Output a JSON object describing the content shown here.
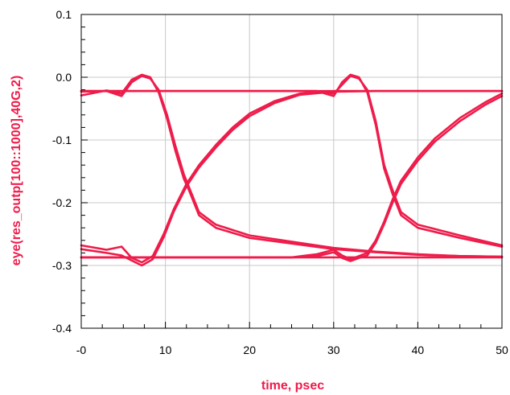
{
  "chart_data": {
    "type": "line",
    "title": "",
    "xlabel": "time, psec",
    "ylabel": "eye(res_outp[100::1000],40G,2)",
    "xlim": [
      0,
      50
    ],
    "ylim": [
      -0.4,
      0.1
    ],
    "x_ticks": [
      0,
      10,
      20,
      30,
      40,
      50
    ],
    "x_tick_labels": [
      "-0",
      "10",
      "20",
      "30",
      "40",
      "50"
    ],
    "y_ticks": [
      0.1,
      0.0,
      -0.1,
      -0.2,
      -0.3,
      -0.4
    ],
    "y_tick_labels": [
      "0.1",
      "0.0",
      "-0.1",
      "-0.2",
      "-0.3",
      "-0.4"
    ],
    "grid": true,
    "colors": {
      "trace": "#ee1c4a",
      "label": "#ee1c4a",
      "grid": "#c8c8c8",
      "frame": "#000000"
    },
    "series": [
      {
        "x": [
          0,
          50
        ],
        "y": [
          -0.022,
          -0.022
        ]
      },
      {
        "x": [
          0,
          50
        ],
        "y": [
          -0.287,
          -0.287
        ]
      },
      {
        "x": [
          0,
          3,
          4.8,
          6,
          7.2,
          8.2,
          9.2,
          10.2,
          11.2,
          12.2,
          12.8,
          14,
          16,
          20,
          25,
          30,
          35,
          40,
          45,
          50
        ],
        "y": [
          -0.023,
          -0.022,
          -0.03,
          -0.008,
          0.002,
          -0.002,
          -0.02,
          -0.06,
          -0.11,
          -0.155,
          -0.175,
          -0.215,
          -0.235,
          -0.252,
          -0.262,
          -0.272,
          -0.278,
          -0.282,
          -0.285,
          -0.286
        ]
      },
      {
        "x": [
          0,
          3,
          4.8,
          6,
          7.2,
          8.2,
          9.2,
          10.2,
          11.2,
          12.2,
          12.8,
          14,
          16,
          20,
          25,
          30,
          35,
          40,
          45,
          50
        ],
        "y": [
          -0.029,
          -0.021,
          -0.026,
          -0.004,
          0.004,
          0.0,
          -0.024,
          -0.066,
          -0.118,
          -0.162,
          -0.18,
          -0.22,
          -0.24,
          -0.256,
          -0.265,
          -0.274,
          -0.279,
          -0.283,
          -0.285,
          -0.286
        ]
      },
      {
        "x": [
          0,
          3,
          4.8,
          6,
          7.2,
          8.5,
          9.8,
          11,
          12.5,
          14,
          16,
          18,
          20,
          23,
          26,
          30,
          35,
          40,
          45,
          50
        ],
        "y": [
          -0.268,
          -0.275,
          -0.27,
          -0.288,
          -0.295,
          -0.285,
          -0.25,
          -0.21,
          -0.17,
          -0.14,
          -0.108,
          -0.08,
          -0.058,
          -0.038,
          -0.026,
          -0.022,
          -0.022,
          -0.022,
          -0.022,
          -0.022
        ]
      },
      {
        "x": [
          0,
          3,
          4.8,
          6,
          7.2,
          8.5,
          9.8,
          11,
          12.5,
          14,
          16,
          18,
          20,
          23,
          26,
          30,
          35,
          40,
          45,
          50
        ],
        "y": [
          -0.274,
          -0.28,
          -0.284,
          -0.292,
          -0.3,
          -0.29,
          -0.255,
          -0.214,
          -0.174,
          -0.144,
          -0.112,
          -0.084,
          -0.062,
          -0.041,
          -0.028,
          -0.023,
          -0.022,
          -0.022,
          -0.022,
          -0.022
        ]
      },
      {
        "x": [
          0,
          5,
          10,
          15,
          20,
          25,
          28,
          30,
          31,
          32,
          33,
          34,
          35,
          36,
          37,
          38,
          40,
          45,
          50
        ],
        "y": [
          -0.022,
          -0.022,
          -0.022,
          -0.022,
          -0.022,
          -0.022,
          -0.022,
          -0.026,
          -0.012,
          0.002,
          -0.002,
          -0.02,
          -0.07,
          -0.14,
          -0.18,
          -0.215,
          -0.235,
          -0.252,
          -0.268
        ]
      },
      {
        "x": [
          0,
          5,
          10,
          15,
          20,
          25,
          28,
          30,
          31,
          32,
          33,
          34,
          35,
          36,
          37,
          38,
          40,
          45,
          50
        ],
        "y": [
          -0.022,
          -0.022,
          -0.022,
          -0.022,
          -0.022,
          -0.022,
          -0.022,
          -0.03,
          -0.008,
          0.004,
          0.0,
          -0.024,
          -0.076,
          -0.146,
          -0.186,
          -0.22,
          -0.24,
          -0.256,
          -0.27
        ]
      },
      {
        "x": [
          0,
          10,
          20,
          25,
          28,
          30,
          31,
          32,
          33,
          34,
          35,
          36,
          37,
          38,
          40,
          42,
          45,
          48,
          50
        ],
        "y": [
          -0.287,
          -0.287,
          -0.287,
          -0.287,
          -0.282,
          -0.275,
          -0.284,
          -0.29,
          -0.285,
          -0.28,
          -0.26,
          -0.23,
          -0.195,
          -0.165,
          -0.128,
          -0.098,
          -0.065,
          -0.04,
          -0.026
        ]
      },
      {
        "x": [
          0,
          10,
          20,
          25,
          28,
          30,
          31,
          32,
          33,
          34,
          35,
          36,
          37,
          38,
          40,
          42,
          45,
          48,
          50
        ],
        "y": [
          -0.287,
          -0.287,
          -0.287,
          -0.287,
          -0.285,
          -0.279,
          -0.288,
          -0.293,
          -0.288,
          -0.284,
          -0.264,
          -0.234,
          -0.2,
          -0.17,
          -0.133,
          -0.103,
          -0.07,
          -0.044,
          -0.03
        ]
      }
    ]
  }
}
